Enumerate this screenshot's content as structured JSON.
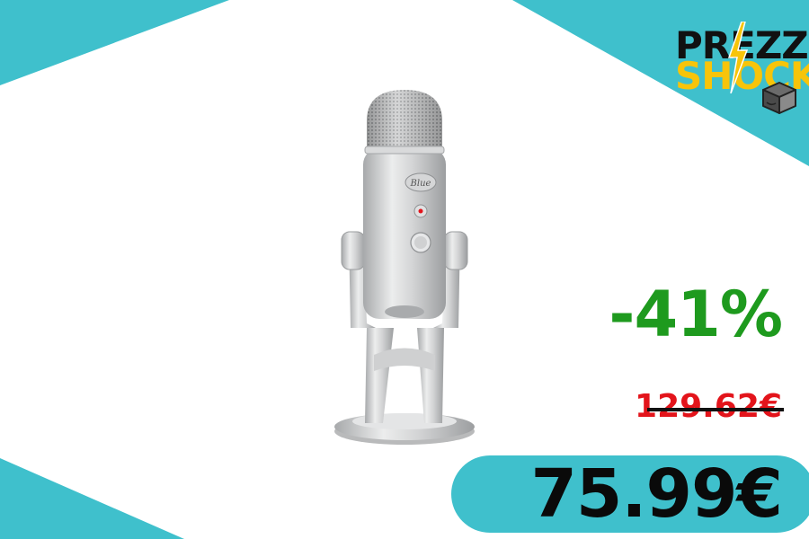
{
  "logo": {
    "line1": "PREZZO",
    "line2": "SHOCK",
    "icon": "package-box-icon"
  },
  "product": {
    "image_icon": "usb-microphone-image",
    "brand_mark": "Blue"
  },
  "discount": "-41%",
  "old_price": "129.62€",
  "new_price": "75.99€",
  "colors": {
    "accent_teal": "#3fc0cc",
    "discount_green": "#1e9a1e",
    "old_price_red": "#e3141b",
    "logo_yellow": "#f7c40a"
  }
}
